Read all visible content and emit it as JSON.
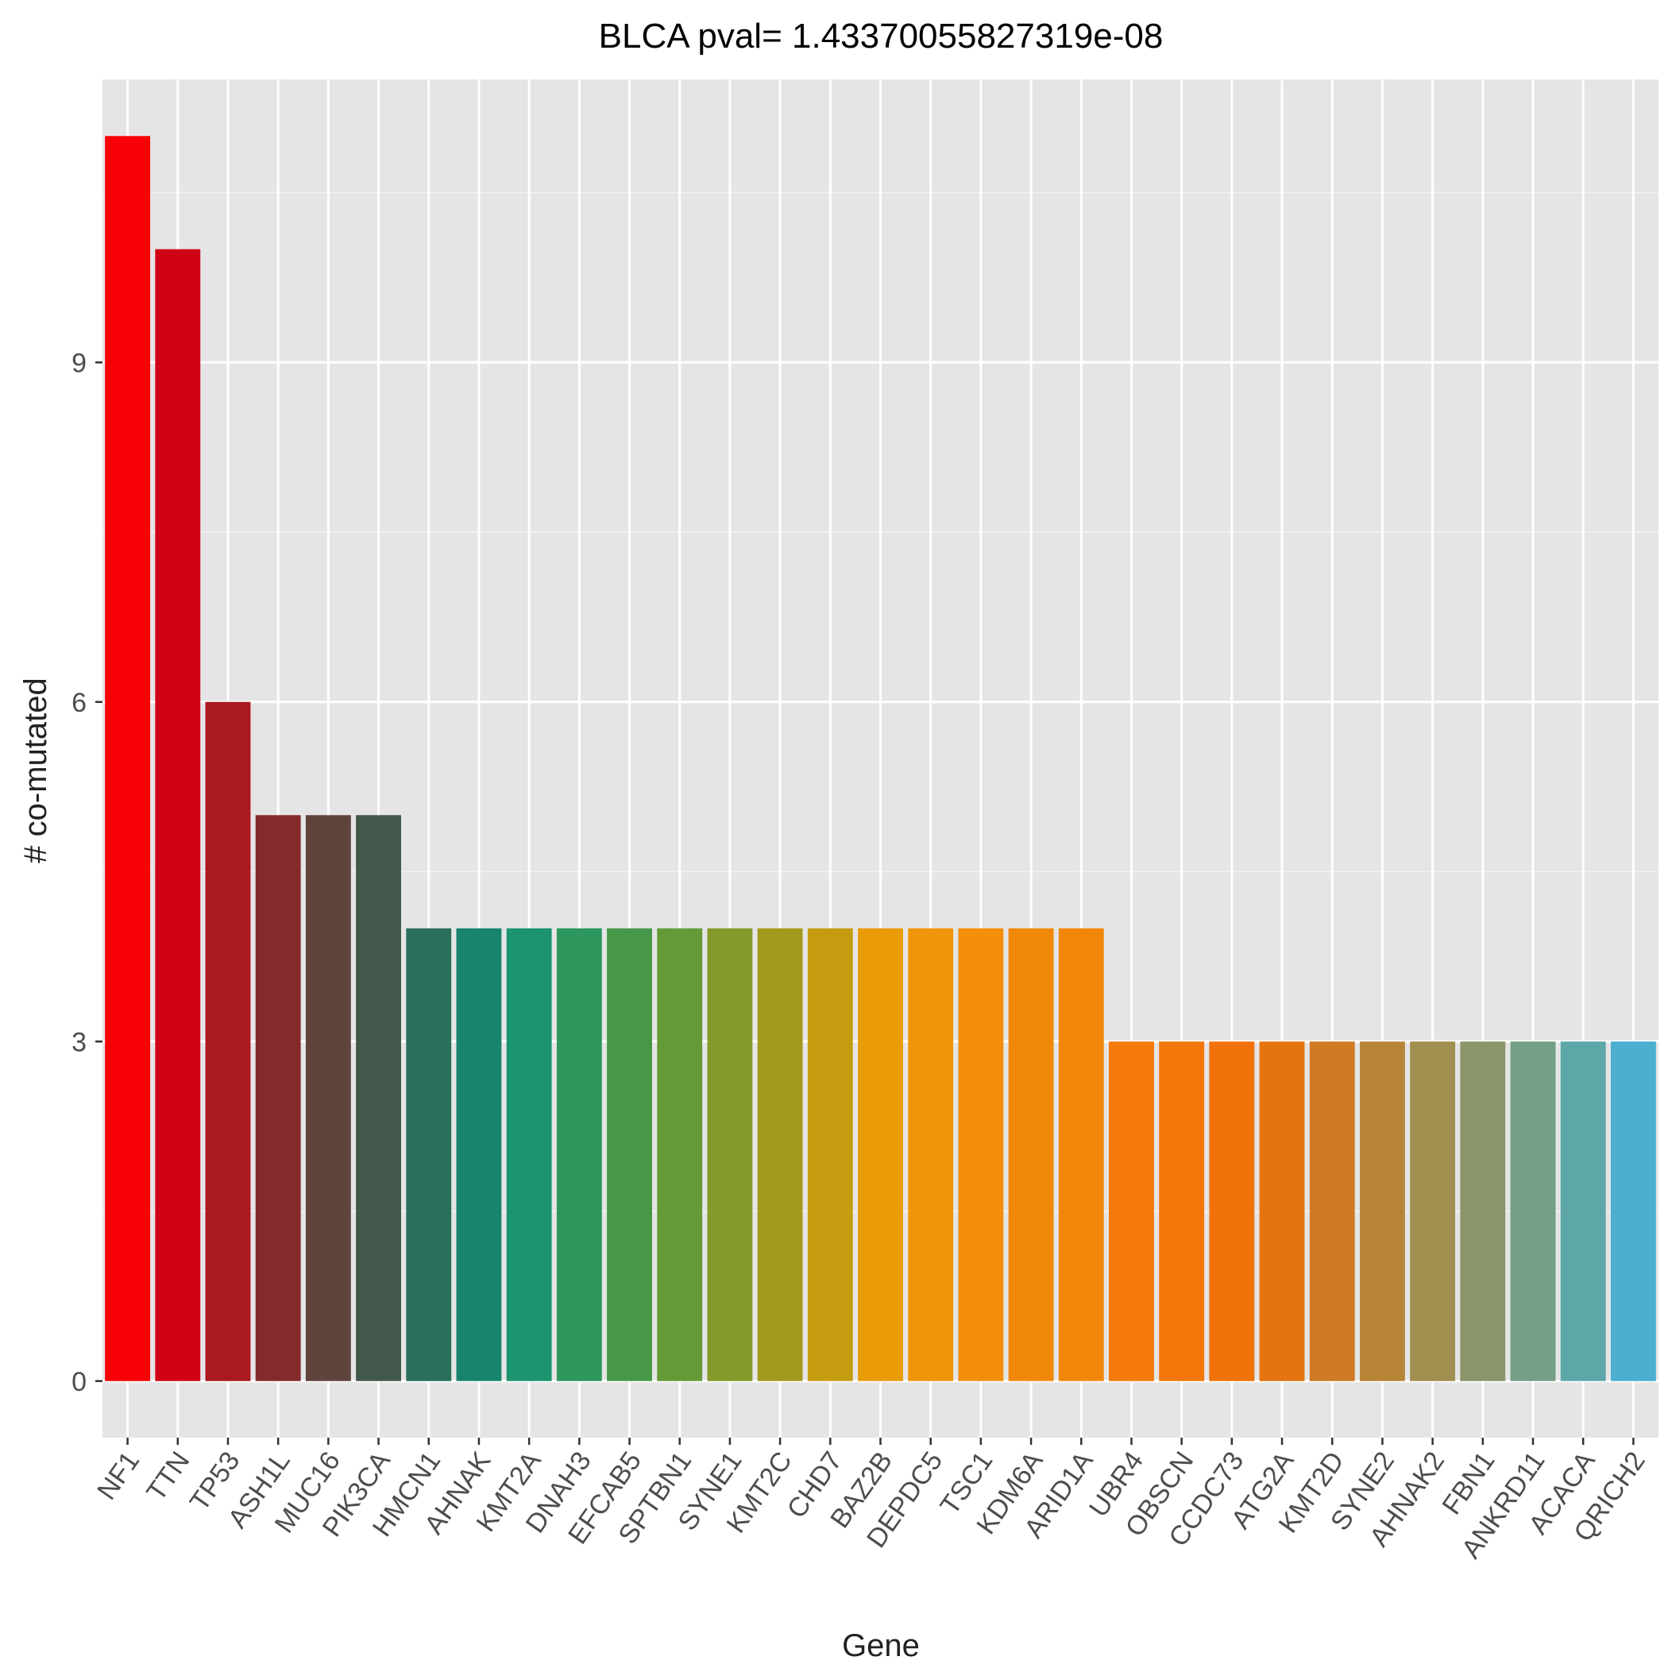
{
  "chart_data": {
    "type": "bar",
    "title": "BLCA pval= 1.43370055827319e-08",
    "xlabel": "Gene",
    "ylabel": "# co-mutated",
    "ylim": [
      -0.5,
      11.5
    ],
    "yticks": [
      0,
      3,
      6,
      9
    ],
    "grid": true,
    "legend": "none",
    "categories": [
      "NF1",
      "TTN",
      "TP53",
      "ASH1L",
      "MUC16",
      "PIK3CA",
      "HMCN1",
      "AHNAK",
      "KMT2A",
      "DNAH3",
      "EFCAB5",
      "SPTBN1",
      "SYNE1",
      "KMT2C",
      "CHD7",
      "BAZ2B",
      "DEPDC5",
      "TSC1",
      "KDM6A",
      "ARID1A",
      "UBR4",
      "OBSCN",
      "CCDC73",
      "ATG2A",
      "KMT2D",
      "SYNE2",
      "AHNAK2",
      "FBN1",
      "ANKRD11",
      "ACACA",
      "QRICH2"
    ],
    "values": [
      11,
      10,
      6,
      5,
      5,
      5,
      4,
      4,
      4,
      4,
      4,
      4,
      4,
      4,
      4,
      4,
      4,
      4,
      4,
      4,
      3,
      3,
      3,
      3,
      3,
      3,
      3,
      3,
      3,
      3,
      3
    ],
    "colors": [
      "#f90007",
      "#d10216",
      "#ab1920",
      "#852a2b",
      "#60443b",
      "#42584a",
      "#2a6e5c",
      "#18846d",
      "#1c946f",
      "#2d975e",
      "#469848",
      "#659a38",
      "#849a2b",
      "#a39a1d",
      "#c59c10",
      "#e99c08",
      "#f0950a",
      "#f38f0a",
      "#f0890a",
      "#f28608",
      "#f47a09",
      "#f3760b",
      "#f2720a",
      "#e5730f",
      "#cf7a24",
      "#b88538",
      "#a18f4f",
      "#8a9569",
      "#739f86",
      "#5da7a9",
      "#4caed0"
    ]
  }
}
